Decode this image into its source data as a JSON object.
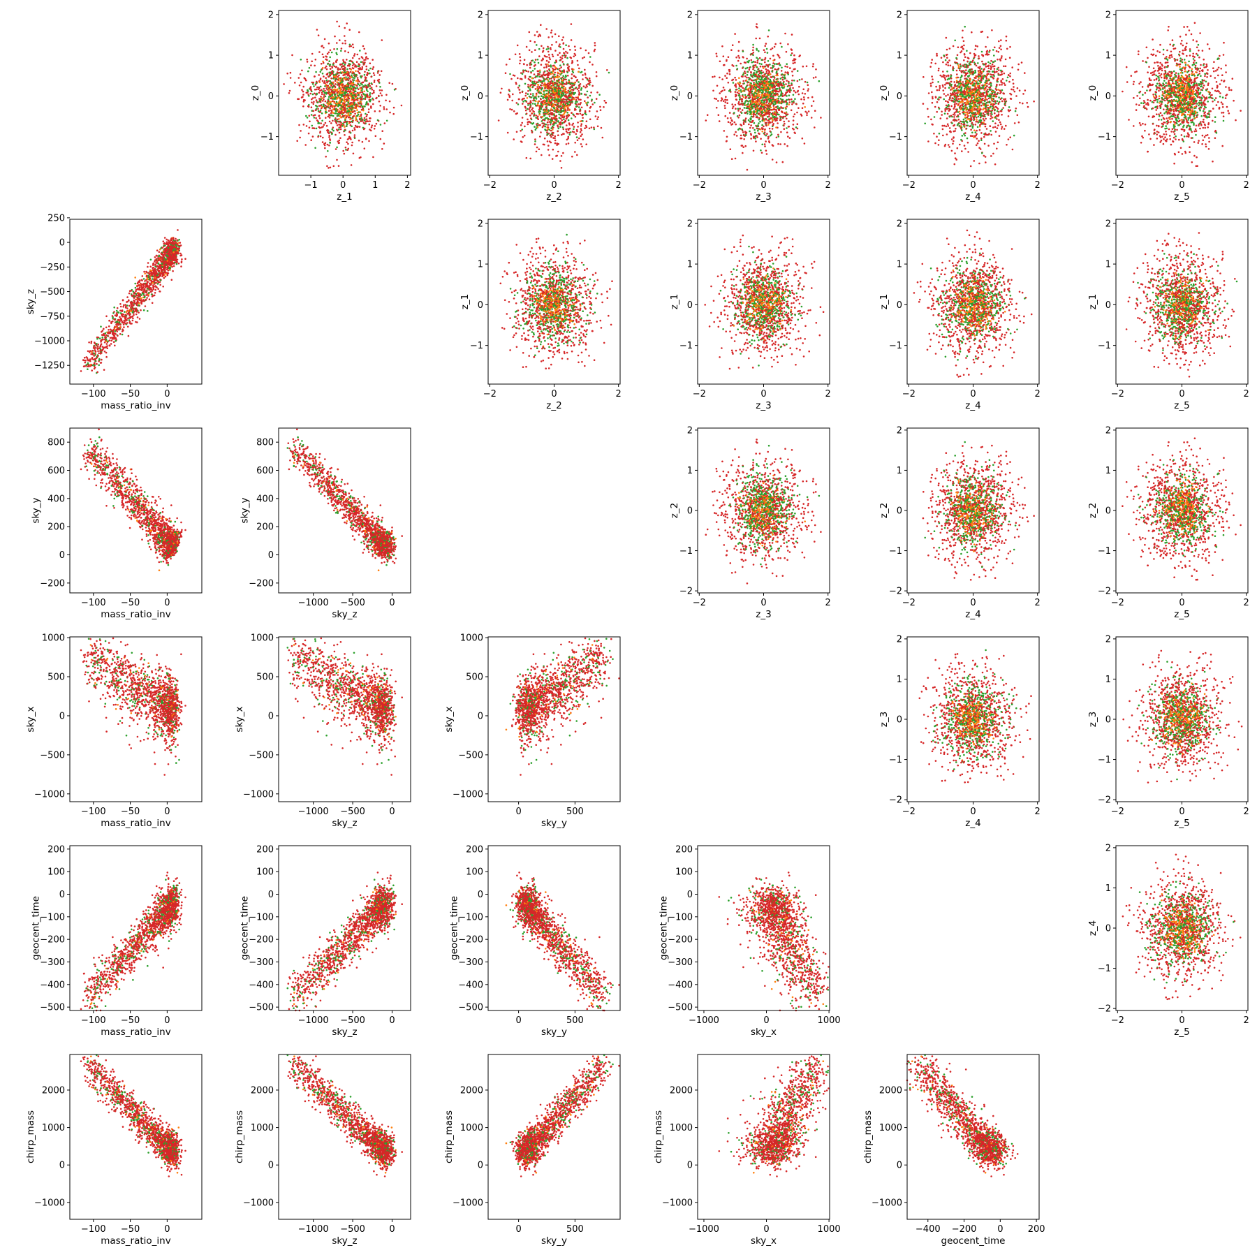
{
  "colors": {
    "red": "#d62728",
    "green": "#2ca02c",
    "orange": "#ff7f0e",
    "axis": "#000000"
  },
  "variables": [
    "mass_ratio_inv",
    "sky_z",
    "sky_y",
    "sky_x",
    "geocent_time",
    "chirp_mass",
    "z_0",
    "z_1",
    "z_2",
    "z_3",
    "z_4",
    "z_5"
  ],
  "chart_data": [
    {
      "type": "scatter",
      "xlabel": "z_1",
      "ylabel": "z_0",
      "xticks": [
        "−1",
        "0",
        "1",
        "2"
      ],
      "yticks": [
        "−1",
        "0",
        "1",
        "2"
      ],
      "kind": "gauss"
    },
    {
      "type": "scatter",
      "xlabel": "z_2",
      "ylabel": "z_0",
      "xticks": [
        "−2",
        "0",
        "2"
      ],
      "yticks": [
        "−1",
        "0",
        "1",
        "2"
      ],
      "kind": "gauss"
    },
    {
      "type": "scatter",
      "xlabel": "z_3",
      "ylabel": "z_0",
      "xticks": [
        "−2",
        "0",
        "2"
      ],
      "yticks": [
        "−1",
        "0",
        "1",
        "2"
      ],
      "kind": "gauss"
    },
    {
      "type": "scatter",
      "xlabel": "z_4",
      "ylabel": "z_0",
      "xticks": [
        "−2",
        "0",
        "2"
      ],
      "yticks": [
        "−1",
        "0",
        "1",
        "2"
      ],
      "kind": "gauss"
    },
    {
      "type": "scatter",
      "xlabel": "z_5",
      "ylabel": "z_0",
      "xticks": [
        "−2",
        "0",
        "2"
      ],
      "yticks": [
        "−1",
        "0",
        "1",
        "2"
      ],
      "kind": "gauss"
    },
    {
      "type": "scatter",
      "xlabel": "mass_ratio_inv",
      "ylabel": "sky_z",
      "xticks": [
        "−100",
        "−50",
        "0"
      ],
      "yticks": [
        "−1250",
        "−1000",
        "−750",
        "−500",
        "−250",
        "0",
        "250"
      ],
      "kind": "phys"
    },
    {
      "type": "scatter",
      "xlabel": "z_2",
      "ylabel": "z_1",
      "xticks": [
        "−2",
        "0",
        "2"
      ],
      "yticks": [
        "−1",
        "0",
        "1",
        "2"
      ],
      "kind": "gauss"
    },
    {
      "type": "scatter",
      "xlabel": "z_3",
      "ylabel": "z_1",
      "xticks": [
        "−2",
        "0",
        "2"
      ],
      "yticks": [
        "−1",
        "0",
        "1",
        "2"
      ],
      "kind": "gauss"
    },
    {
      "type": "scatter",
      "xlabel": "z_4",
      "ylabel": "z_1",
      "xticks": [
        "−2",
        "0",
        "2"
      ],
      "yticks": [
        "−1",
        "0",
        "1",
        "2"
      ],
      "kind": "gauss"
    },
    {
      "type": "scatter",
      "xlabel": "z_5",
      "ylabel": "z_1",
      "xticks": [
        "−2",
        "0",
        "2"
      ],
      "yticks": [
        "−1",
        "0",
        "1",
        "2"
      ],
      "kind": "gauss"
    },
    {
      "type": "scatter",
      "xlabel": "mass_ratio_inv",
      "ylabel": "sky_y",
      "xticks": [
        "−100",
        "−50",
        "0"
      ],
      "yticks": [
        "−200",
        "0",
        "200",
        "400",
        "600",
        "800"
      ],
      "kind": "phys"
    },
    {
      "type": "scatter",
      "xlabel": "sky_z",
      "ylabel": "sky_y",
      "xticks": [
        "−1000",
        "−500",
        "0"
      ],
      "yticks": [
        "−200",
        "0",
        "200",
        "400",
        "600",
        "800"
      ],
      "kind": "phys"
    },
    {
      "type": "scatter",
      "xlabel": "z_3",
      "ylabel": "z_2",
      "xticks": [
        "−2",
        "0",
        "2"
      ],
      "yticks": [
        "−2",
        "−1",
        "0",
        "1",
        "2"
      ],
      "kind": "gauss"
    },
    {
      "type": "scatter",
      "xlabel": "z_4",
      "ylabel": "z_2",
      "xticks": [
        "−2",
        "0",
        "2"
      ],
      "yticks": [
        "−2",
        "−1",
        "0",
        "1",
        "2"
      ],
      "kind": "gauss"
    },
    {
      "type": "scatter",
      "xlabel": "z_5",
      "ylabel": "z_2",
      "xticks": [
        "−2",
        "0",
        "2"
      ],
      "yticks": [
        "−2",
        "−1",
        "0",
        "1",
        "2"
      ],
      "kind": "gauss"
    },
    {
      "type": "scatter",
      "xlabel": "mass_ratio_inv",
      "ylabel": "sky_x",
      "xticks": [
        "−100",
        "−50",
        "0"
      ],
      "yticks": [
        "−1000",
        "−500",
        "0",
        "500",
        "1000"
      ],
      "kind": "phys"
    },
    {
      "type": "scatter",
      "xlabel": "sky_z",
      "ylabel": "sky_x",
      "xticks": [
        "−1000",
        "−500",
        "0"
      ],
      "yticks": [
        "−1000",
        "−500",
        "0",
        "500",
        "1000"
      ],
      "kind": "phys"
    },
    {
      "type": "scatter",
      "xlabel": "sky_y",
      "ylabel": "sky_x",
      "xticks": [
        "0",
        "500"
      ],
      "yticks": [
        "−1000",
        "−500",
        "0",
        "500",
        "1000"
      ],
      "kind": "phys"
    },
    {
      "type": "scatter",
      "xlabel": "z_4",
      "ylabel": "z_3",
      "xticks": [
        "−2",
        "0",
        "2"
      ],
      "yticks": [
        "−2",
        "−1",
        "0",
        "1",
        "2"
      ],
      "kind": "gauss"
    },
    {
      "type": "scatter",
      "xlabel": "z_5",
      "ylabel": "z_3",
      "xticks": [
        "−2",
        "0",
        "2"
      ],
      "yticks": [
        "−2",
        "−1",
        "0",
        "1",
        "2"
      ],
      "kind": "gauss"
    },
    {
      "type": "scatter",
      "xlabel": "mass_ratio_inv",
      "ylabel": "geocent_time",
      "xticks": [
        "−100",
        "−50",
        "0"
      ],
      "yticks": [
        "−500",
        "−400",
        "−300",
        "−200",
        "−100",
        "0",
        "100",
        "200"
      ],
      "kind": "phys"
    },
    {
      "type": "scatter",
      "xlabel": "sky_z",
      "ylabel": "geocent_time",
      "xticks": [
        "−1000",
        "−500",
        "0"
      ],
      "yticks": [
        "−500",
        "−400",
        "−300",
        "−200",
        "−100",
        "0",
        "100",
        "200"
      ],
      "kind": "phys"
    },
    {
      "type": "scatter",
      "xlabel": "sky_y",
      "ylabel": "geocent_time",
      "xticks": [
        "0",
        "500"
      ],
      "yticks": [
        "−500",
        "−400",
        "−300",
        "−200",
        "−100",
        "0",
        "100",
        "200"
      ],
      "kind": "phys"
    },
    {
      "type": "scatter",
      "xlabel": "sky_x",
      "ylabel": "geocent_time",
      "xticks": [
        "−1000",
        "0",
        "1000"
      ],
      "yticks": [
        "−500",
        "−400",
        "−300",
        "−200",
        "−100",
        "0",
        "100",
        "200"
      ],
      "kind": "phys"
    },
    {
      "type": "scatter",
      "xlabel": "z_5",
      "ylabel": "z_4",
      "xticks": [
        "−2",
        "0",
        "2"
      ],
      "yticks": [
        "−2",
        "−1",
        "0",
        "1",
        "2"
      ],
      "kind": "gauss"
    },
    {
      "type": "scatter",
      "xlabel": "mass_ratio_inv",
      "ylabel": "chirp_mass",
      "xticks": [
        "−100",
        "−50",
        "0"
      ],
      "yticks": [
        "−1000",
        "0",
        "1000",
        "2000"
      ],
      "kind": "phys"
    },
    {
      "type": "scatter",
      "xlabel": "sky_z",
      "ylabel": "chirp_mass",
      "xticks": [
        "−1000",
        "−500",
        "0"
      ],
      "yticks": [
        "−1000",
        "0",
        "1000",
        "2000"
      ],
      "kind": "phys"
    },
    {
      "type": "scatter",
      "xlabel": "sky_y",
      "ylabel": "chirp_mass",
      "xticks": [
        "0",
        "500"
      ],
      "yticks": [
        "−1000",
        "0",
        "1000",
        "2000"
      ],
      "kind": "phys"
    },
    {
      "type": "scatter",
      "xlabel": "sky_x",
      "ylabel": "chirp_mass",
      "xticks": [
        "−1000",
        "0",
        "1000"
      ],
      "yticks": [
        "−1000",
        "0",
        "1000",
        "2000"
      ],
      "kind": "phys"
    },
    {
      "type": "scatter",
      "xlabel": "geocent_time",
      "ylabel": "chirp_mass",
      "xticks": [
        "−400",
        "−200",
        "0",
        "200"
      ],
      "yticks": [
        "−1000",
        "0",
        "1000",
        "2000"
      ],
      "kind": "phys"
    }
  ]
}
